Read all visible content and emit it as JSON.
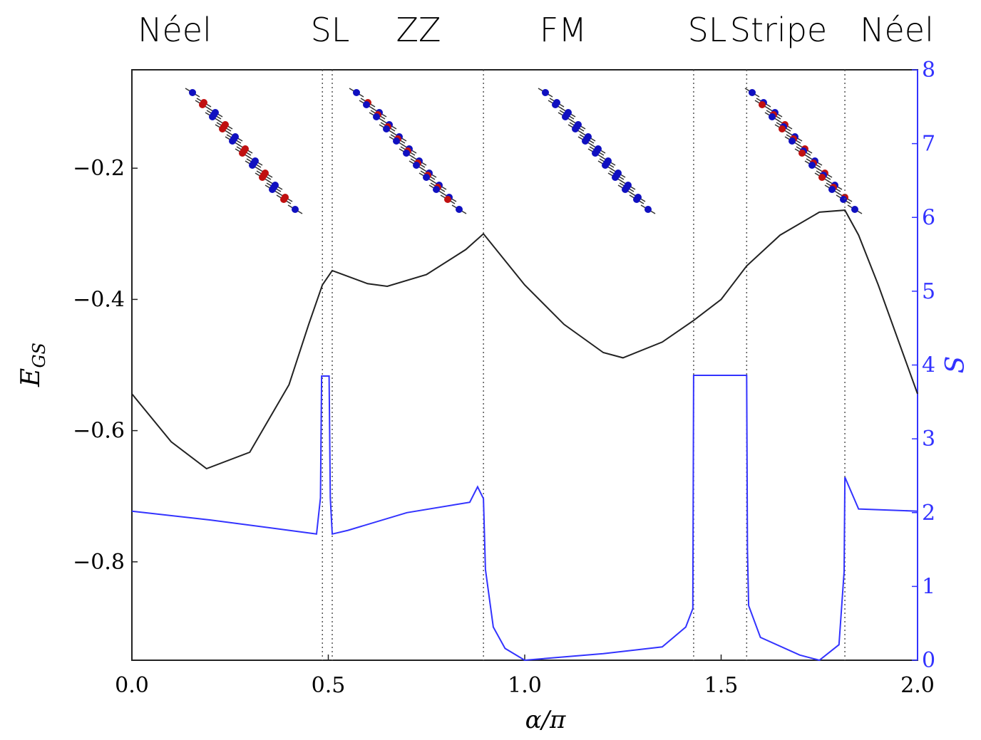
{
  "chart_data": {
    "type": "line",
    "phase_labels": [
      "Néel",
      "SL",
      "ZZ",
      "FM",
      "SL",
      "Stripe",
      "Néel"
    ],
    "xlabel": "α/π",
    "ylabel": "E",
    "ylabel_sub": "GS",
    "y2label": "S",
    "xlim": [
      0,
      2
    ],
    "xticks": [
      {
        "value": 0,
        "label": "0.0"
      },
      {
        "value": 0.5,
        "label": "0.5"
      },
      {
        "value": 1,
        "label": "1.0"
      },
      {
        "value": 1.5,
        "label": "1.5"
      },
      {
        "value": 2,
        "label": "2.0"
      }
    ],
    "ylim": [
      -0.95,
      -0.05
    ],
    "yticks": [
      {
        "value": -0.2,
        "label": "−0.2"
      },
      {
        "value": -0.4,
        "label": "−0.4"
      },
      {
        "value": -0.6,
        "label": "−0.6"
      },
      {
        "value": -0.8,
        "label": "−0.8"
      }
    ],
    "y2lim": [
      0,
      8
    ],
    "y2ticks": [
      0,
      1,
      2,
      3,
      4,
      5,
      6,
      7,
      8
    ],
    "y2color": "#3333ff",
    "vlines": [
      0.485,
      0.51,
      0.895,
      1.43,
      1.565,
      1.815
    ],
    "series": [
      {
        "color": "#222222",
        "x": [
          0,
          0.1,
          0.19,
          0.3,
          0.4,
          0.45,
          0.485,
          0.51,
          0.6,
          0.65,
          0.75,
          0.85,
          0.895,
          1.0,
          1.1,
          1.2,
          1.25,
          1.35,
          1.43,
          1.5,
          1.565,
          1.65,
          1.75,
          1.815,
          1.85,
          1.9,
          2.0
        ],
        "values": [
          -0.544,
          -0.617,
          -0.658,
          -0.633,
          -0.53,
          -0.438,
          -0.378,
          -0.356,
          -0.376,
          -0.38,
          -0.362,
          -0.324,
          -0.3,
          -0.378,
          -0.438,
          -0.481,
          -0.489,
          -0.465,
          -0.432,
          -0.4,
          -0.349,
          -0.302,
          -0.267,
          -0.264,
          -0.302,
          -0.378,
          -0.544
        ]
      },
      {
        "color": "#3333ff",
        "axis": "y2",
        "x": [
          0,
          0.2,
          0.4,
          0.47,
          0.48,
          0.483,
          0.502,
          0.505,
          0.51,
          0.55,
          0.7,
          0.86,
          0.88,
          0.895,
          0.9,
          0.92,
          0.95,
          1.0,
          1.2,
          1.35,
          1.41,
          1.428,
          1.43,
          1.565,
          1.567,
          1.57,
          1.6,
          1.7,
          1.75,
          1.8,
          1.813,
          1.815,
          1.85,
          2.0
        ],
        "values": [
          2.02,
          1.9,
          1.76,
          1.71,
          2.2,
          3.85,
          3.85,
          2.2,
          1.71,
          1.76,
          2.0,
          2.14,
          2.35,
          2.19,
          1.23,
          0.45,
          0.16,
          0,
          0.09,
          0.18,
          0.45,
          0.7,
          3.86,
          3.86,
          1.5,
          0.74,
          0.31,
          0.07,
          0,
          0.21,
          1.2,
          2.48,
          2.05,
          2.02
        ]
      }
    ]
  }
}
